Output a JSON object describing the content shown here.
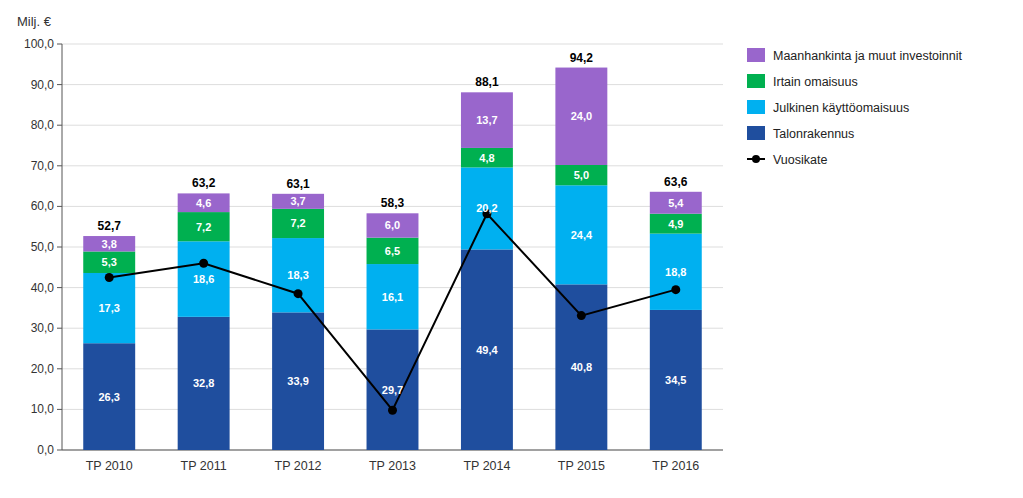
{
  "chart_data": {
    "type": "bar",
    "stacked": true,
    "ylabel": "Milj. €",
    "categories": [
      "TP 2010",
      "TP 2011",
      "TP 2012",
      "TP 2013",
      "TP 2014",
      "TP 2015",
      "TP 2016"
    ],
    "series": [
      {
        "name": "Talonrakennus",
        "color": "#1f4e9e",
        "data_labels": true,
        "values": [
          26.3,
          32.8,
          33.9,
          29.7,
          49.4,
          40.8,
          34.5
        ],
        "value_labels": [
          "26,3",
          "32,8",
          "33,9",
          "29,7",
          "49,4",
          "40,8",
          "34,5"
        ]
      },
      {
        "name": "Julkinen käyttöomaisuus",
        "color": "#00b0f0",
        "data_labels": true,
        "values": [
          17.3,
          18.6,
          18.3,
          16.1,
          20.2,
          24.4,
          18.8
        ],
        "value_labels": [
          "17,3",
          "18,6",
          "18,3",
          "16,1",
          "20,2",
          "24,4",
          "18,8"
        ]
      },
      {
        "name": "Irtain omaisuus",
        "color": "#00b050",
        "data_labels": true,
        "values": [
          5.3,
          7.2,
          7.2,
          6.5,
          4.8,
          5.0,
          4.9
        ],
        "value_labels": [
          "5,3",
          "7,2",
          "7,2",
          "6,5",
          "4,8",
          "5,0",
          "4,9"
        ]
      },
      {
        "name": "Maanhankinta ja muut investoinnit",
        "color": "#9966cc",
        "data_labels": true,
        "values": [
          3.8,
          4.6,
          3.7,
          6.0,
          13.7,
          24.0,
          5.4
        ],
        "value_labels": [
          "3,8",
          "4,6",
          "3,7",
          "6,0",
          "13,7",
          "24,0",
          "5,4"
        ]
      },
      {
        "name": "Vuosikate",
        "type": "line",
        "color": "#000000",
        "marker": "circle",
        "line_style": "solid",
        "data_labels": false,
        "values": [
          42.5,
          46.0,
          38.5,
          9.8,
          58.2,
          33.1,
          39.5
        ]
      }
    ],
    "totals": [
      52.7,
      63.2,
      63.1,
      58.3,
      88.1,
      94.2,
      63.6
    ],
    "total_labels": [
      "52,7",
      "63,2",
      "63,1",
      "58,3",
      "88,1",
      "94,2",
      "63,6"
    ],
    "ylim": [
      0,
      100
    ],
    "yticks": [
      {
        "value": 0,
        "label": "0,0"
      },
      {
        "value": 10,
        "label": "10,0"
      },
      {
        "value": 20,
        "label": "20,0"
      },
      {
        "value": 30,
        "label": "30,0"
      },
      {
        "value": 40,
        "label": "40,0"
      },
      {
        "value": 50,
        "label": "50,0"
      },
      {
        "value": 60,
        "label": "60,0"
      },
      {
        "value": 70,
        "label": "70,0"
      },
      {
        "value": 80,
        "label": "80,0"
      },
      {
        "value": 90,
        "label": "90,0"
      },
      {
        "value": 100,
        "label": "100,0"
      }
    ],
    "grid": true,
    "legend": "right"
  }
}
